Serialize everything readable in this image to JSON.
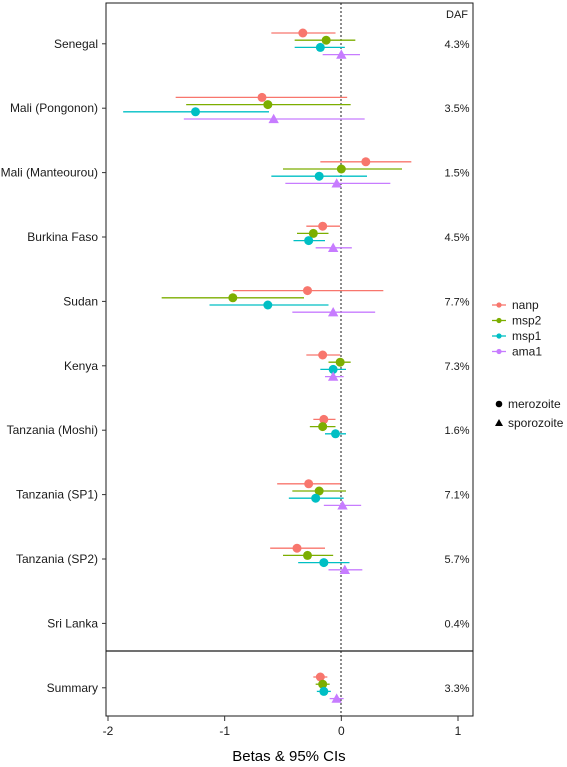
{
  "chart_data": {
    "type": "scatter",
    "xlabel": "Betas & 95% CIs",
    "xlim": [
      -2,
      1
    ],
    "xticks": [
      "-2",
      "-1",
      "0",
      "1"
    ],
    "daf_header": "DAF",
    "reference_line": 0,
    "grid": false,
    "legend_position": "right",
    "series": [
      {
        "name": "nanp",
        "color": "#F8766D"
      },
      {
        "name": "msp2",
        "color": "#7CAE00"
      },
      {
        "name": "msp1",
        "color": "#00BFC4"
      },
      {
        "name": "ama1",
        "color": "#C77CFF"
      }
    ],
    "stages": [
      {
        "name": "merozoite",
        "shape": "circle"
      },
      {
        "name": "sporozoite",
        "shape": "triangle"
      }
    ],
    "groups": [
      {
        "label": "Senegal",
        "daf": "4.3%",
        "points": [
          {
            "series": "nanp",
            "beta": -0.33,
            "lo": -0.6,
            "hi": -0.05
          },
          {
            "series": "msp2",
            "beta": -0.13,
            "lo": -0.4,
            "hi": 0.12
          },
          {
            "series": "msp1",
            "beta": -0.18,
            "lo": -0.4,
            "hi": 0.03
          },
          {
            "series": "ama1",
            "beta": 0.0,
            "lo": -0.16,
            "hi": 0.16
          }
        ]
      },
      {
        "label": "Mali (Pongonon)",
        "daf": "3.5%",
        "points": [
          {
            "series": "nanp",
            "beta": -0.68,
            "lo": -1.42,
            "hi": 0.05
          },
          {
            "series": "msp2",
            "beta": -0.63,
            "lo": -1.33,
            "hi": 0.08
          },
          {
            "series": "msp1",
            "beta": -1.25,
            "lo": -1.87,
            "hi": -0.62
          },
          {
            "series": "ama1",
            "beta": -0.58,
            "lo": -1.35,
            "hi": 0.2
          }
        ]
      },
      {
        "label": "Mali (Manteourou)",
        "daf": "1.5%",
        "points": [
          {
            "series": "nanp",
            "beta": 0.21,
            "lo": -0.18,
            "hi": 0.6
          },
          {
            "series": "msp2",
            "beta": 0.0,
            "lo": -0.5,
            "hi": 0.52
          },
          {
            "series": "msp1",
            "beta": -0.19,
            "lo": -0.6,
            "hi": 0.22
          },
          {
            "series": "ama1",
            "beta": -0.04,
            "lo": -0.48,
            "hi": 0.42
          }
        ]
      },
      {
        "label": "Burkina Faso",
        "daf": "4.5%",
        "points": [
          {
            "series": "nanp",
            "beta": -0.16,
            "lo": -0.3,
            "hi": -0.01
          },
          {
            "series": "msp2",
            "beta": -0.24,
            "lo": -0.38,
            "hi": -0.11
          },
          {
            "series": "msp1",
            "beta": -0.28,
            "lo": -0.41,
            "hi": -0.14
          },
          {
            "series": "ama1",
            "beta": -0.07,
            "lo": -0.22,
            "hi": 0.09
          }
        ]
      },
      {
        "label": "Sudan",
        "daf": "7.7%",
        "points": [
          {
            "series": "nanp",
            "beta": -0.29,
            "lo": -0.93,
            "hi": 0.36
          },
          {
            "series": "msp2",
            "beta": -0.93,
            "lo": -1.54,
            "hi": -0.32
          },
          {
            "series": "msp1",
            "beta": -0.63,
            "lo": -1.13,
            "hi": -0.11
          },
          {
            "series": "ama1",
            "beta": -0.07,
            "lo": -0.42,
            "hi": 0.29
          }
        ]
      },
      {
        "label": "Kenya",
        "daf": "7.3%",
        "points": [
          {
            "series": "nanp",
            "beta": -0.16,
            "lo": -0.3,
            "hi": -0.01
          },
          {
            "series": "msp2",
            "beta": -0.01,
            "lo": -0.11,
            "hi": 0.08
          },
          {
            "series": "msp1",
            "beta": -0.07,
            "lo": -0.18,
            "hi": 0.04
          },
          {
            "series": "ama1",
            "beta": -0.07,
            "lo": -0.14,
            "hi": 0.02
          }
        ]
      },
      {
        "label": "Tanzania (Moshi)",
        "daf": "1.6%",
        "points": [
          {
            "series": "nanp",
            "beta": -0.15,
            "lo": -0.24,
            "hi": -0.05
          },
          {
            "series": "msp2",
            "beta": -0.16,
            "lo": -0.27,
            "hi": -0.05
          },
          {
            "series": "msp1",
            "beta": -0.05,
            "lo": -0.14,
            "hi": 0.04
          },
          {
            "series": "ama1",
            "beta": null,
            "lo": null,
            "hi": null
          }
        ]
      },
      {
        "label": "Tanzania (SP1)",
        "daf": "7.1%",
        "points": [
          {
            "series": "nanp",
            "beta": -0.28,
            "lo": -0.55,
            "hi": -0.01
          },
          {
            "series": "msp2",
            "beta": -0.19,
            "lo": -0.42,
            "hi": 0.04
          },
          {
            "series": "msp1",
            "beta": -0.22,
            "lo": -0.45,
            "hi": 0.02
          },
          {
            "series": "ama1",
            "beta": 0.01,
            "lo": -0.15,
            "hi": 0.17
          }
        ]
      },
      {
        "label": "Tanzania (SP2)",
        "daf": "5.7%",
        "points": [
          {
            "series": "nanp",
            "beta": -0.38,
            "lo": -0.61,
            "hi": -0.14
          },
          {
            "series": "msp2",
            "beta": -0.29,
            "lo": -0.5,
            "hi": -0.07
          },
          {
            "series": "msp1",
            "beta": -0.15,
            "lo": -0.37,
            "hi": 0.07
          },
          {
            "series": "ama1",
            "beta": 0.03,
            "lo": -0.11,
            "hi": 0.18
          }
        ]
      },
      {
        "label": "Sri Lanka",
        "daf": "0.4%",
        "points": []
      },
      {
        "label": "Summary",
        "daf": "3.3%",
        "points": [
          {
            "series": "nanp",
            "beta": -0.18,
            "lo": -0.24,
            "hi": -0.12
          },
          {
            "series": "msp2",
            "beta": -0.16,
            "lo": -0.22,
            "hi": -0.1
          },
          {
            "series": "msp1",
            "beta": -0.15,
            "lo": -0.21,
            "hi": -0.09
          },
          {
            "series": "ama1",
            "beta": -0.04,
            "lo": -0.1,
            "hi": 0.02
          }
        ]
      }
    ]
  }
}
